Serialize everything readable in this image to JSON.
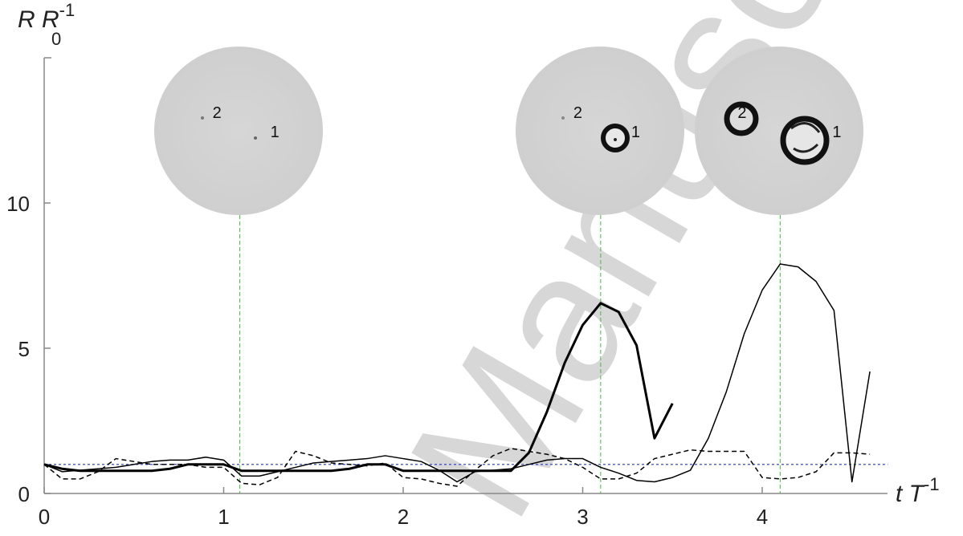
{
  "chart_data": {
    "type": "line",
    "x_label": {
      "main": "t T",
      "sup": "-1"
    },
    "y_label": {
      "main": "R R",
      "sub": "0",
      "sup": "-1"
    },
    "watermark": "Manuscript",
    "x": [
      0,
      0.1,
      0.2,
      0.3,
      0.4,
      0.5,
      0.6,
      0.7,
      0.8,
      0.9,
      1.0,
      1.1,
      1.2,
      1.3,
      1.4,
      1.5,
      1.6,
      1.7,
      1.8,
      1.9,
      2.0,
      2.1,
      2.2,
      2.3,
      2.4,
      2.5,
      2.6,
      2.7,
      2.8,
      2.9,
      3.0,
      3.1,
      3.2,
      3.3,
      3.4,
      3.5,
      3.6,
      3.7,
      3.8,
      3.9,
      4.0,
      4.1,
      4.2,
      4.3,
      4.4,
      4.5,
      4.6
    ],
    "series": [
      {
        "color": "#000000",
        "width": 3,
        "dash": "none",
        "values": [
          1.0,
          0.85,
          0.78,
          0.78,
          0.78,
          0.78,
          0.78,
          0.85,
          1.0,
          1.0,
          1.0,
          0.78,
          0.78,
          0.78,
          0.78,
          0.78,
          0.78,
          0.85,
          1.0,
          1.0,
          0.78,
          0.78,
          0.78,
          0.78,
          0.78,
          0.78,
          0.78,
          1.4,
          2.8,
          4.5,
          5.8,
          6.55,
          6.25,
          5.1,
          1.9,
          3.1,
          null,
          null,
          null,
          null,
          null,
          null,
          null,
          null,
          null,
          null,
          null
        ]
      },
      {
        "color": "#000000",
        "width": 1.5,
        "dash": "none",
        "values": [
          1.0,
          0.75,
          0.8,
          0.85,
          0.9,
          1.0,
          1.1,
          1.15,
          1.15,
          1.25,
          1.15,
          0.6,
          0.6,
          0.75,
          0.9,
          1.05,
          1.1,
          1.15,
          1.2,
          1.3,
          1.2,
          1.1,
          0.8,
          0.4,
          0.75,
          0.8,
          0.85,
          1.0,
          1.15,
          1.2,
          1.2,
          0.9,
          0.7,
          0.45,
          0.4,
          0.55,
          0.8,
          1.9,
          3.5,
          5.5,
          7.0,
          7.9,
          7.8,
          7.3,
          6.3,
          0.4,
          4.2
        ]
      },
      {
        "color": "#000000",
        "width": 1.5,
        "dash": "6 4",
        "values": [
          1.0,
          0.5,
          0.5,
          0.75,
          1.2,
          1.1,
          1.0,
          1.0,
          1.0,
          0.9,
          0.9,
          0.35,
          0.3,
          0.55,
          1.45,
          1.3,
          1.05,
          1.0,
          0.95,
          1.05,
          0.55,
          0.5,
          0.35,
          0.25,
          0.8,
          1.3,
          1.55,
          1.45,
          1.35,
          1.2,
          0.9,
          0.5,
          0.5,
          0.7,
          1.2,
          1.35,
          1.5,
          1.45,
          1.45,
          1.45,
          0.55,
          0.5,
          0.55,
          0.75,
          1.4,
          1.4,
          1.35
        ]
      }
    ],
    "reference_line": {
      "y": 1,
      "color": "#2233cc"
    },
    "snapshots": [
      {
        "t": 1.09,
        "labels": [
          "2",
          "1"
        ]
      },
      {
        "t": 3.1,
        "labels": [
          "2",
          "1"
        ]
      },
      {
        "t": 4.1,
        "labels": [
          "2",
          "1"
        ]
      }
    ],
    "snapshot_line_color": "#44bb44",
    "xlim": [
      0,
      4.7
    ],
    "ylim": [
      0,
      15
    ],
    "xticks": [
      0,
      1,
      2,
      3,
      4
    ],
    "yticks": [
      0,
      5,
      10
    ]
  }
}
